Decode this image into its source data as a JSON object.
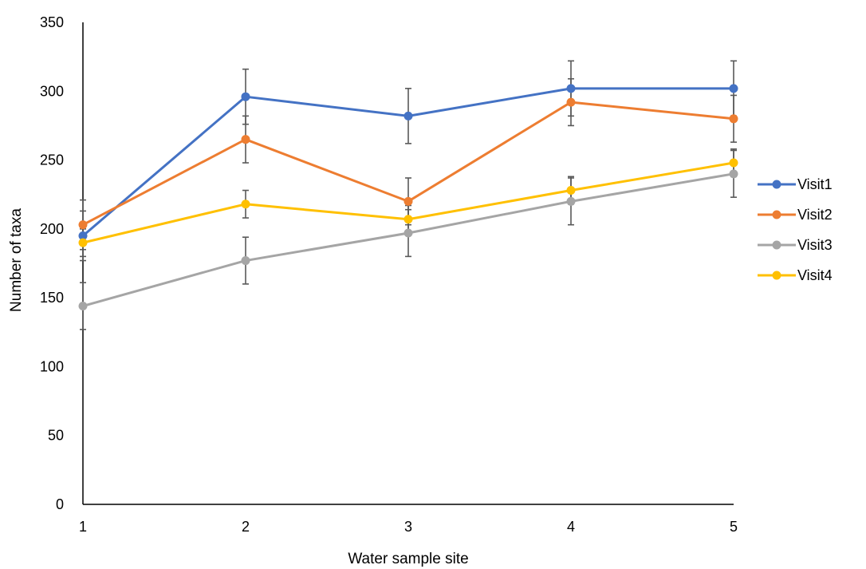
{
  "chart_data": {
    "type": "line",
    "x": [
      1,
      2,
      3,
      4,
      5
    ],
    "xlabel": "Water sample site",
    "ylabel": "Number of taxa",
    "ylim": [
      0,
      350
    ],
    "yticks": [
      0,
      50,
      100,
      150,
      200,
      250,
      300,
      350
    ],
    "grid": false,
    "legend_position": "right",
    "series": [
      {
        "name": "Visit1",
        "color": "#4472C4",
        "values": [
          195,
          296,
          282,
          302,
          302
        ],
        "errors": [
          18,
          20,
          20,
          20,
          20
        ]
      },
      {
        "name": "Visit2",
        "color": "#ED7D31",
        "values": [
          203,
          265,
          220,
          292,
          280
        ],
        "errors": [
          18,
          17,
          17,
          17,
          17
        ]
      },
      {
        "name": "Visit3",
        "color": "#A5A5A5",
        "values": [
          144,
          177,
          197,
          220,
          240
        ],
        "errors": [
          17,
          17,
          17,
          17,
          17
        ]
      },
      {
        "name": "Visit4",
        "color": "#FFC000",
        "values": [
          190,
          218,
          207,
          228,
          248
        ],
        "errors": [
          10,
          10,
          10,
          10,
          10
        ]
      }
    ]
  }
}
